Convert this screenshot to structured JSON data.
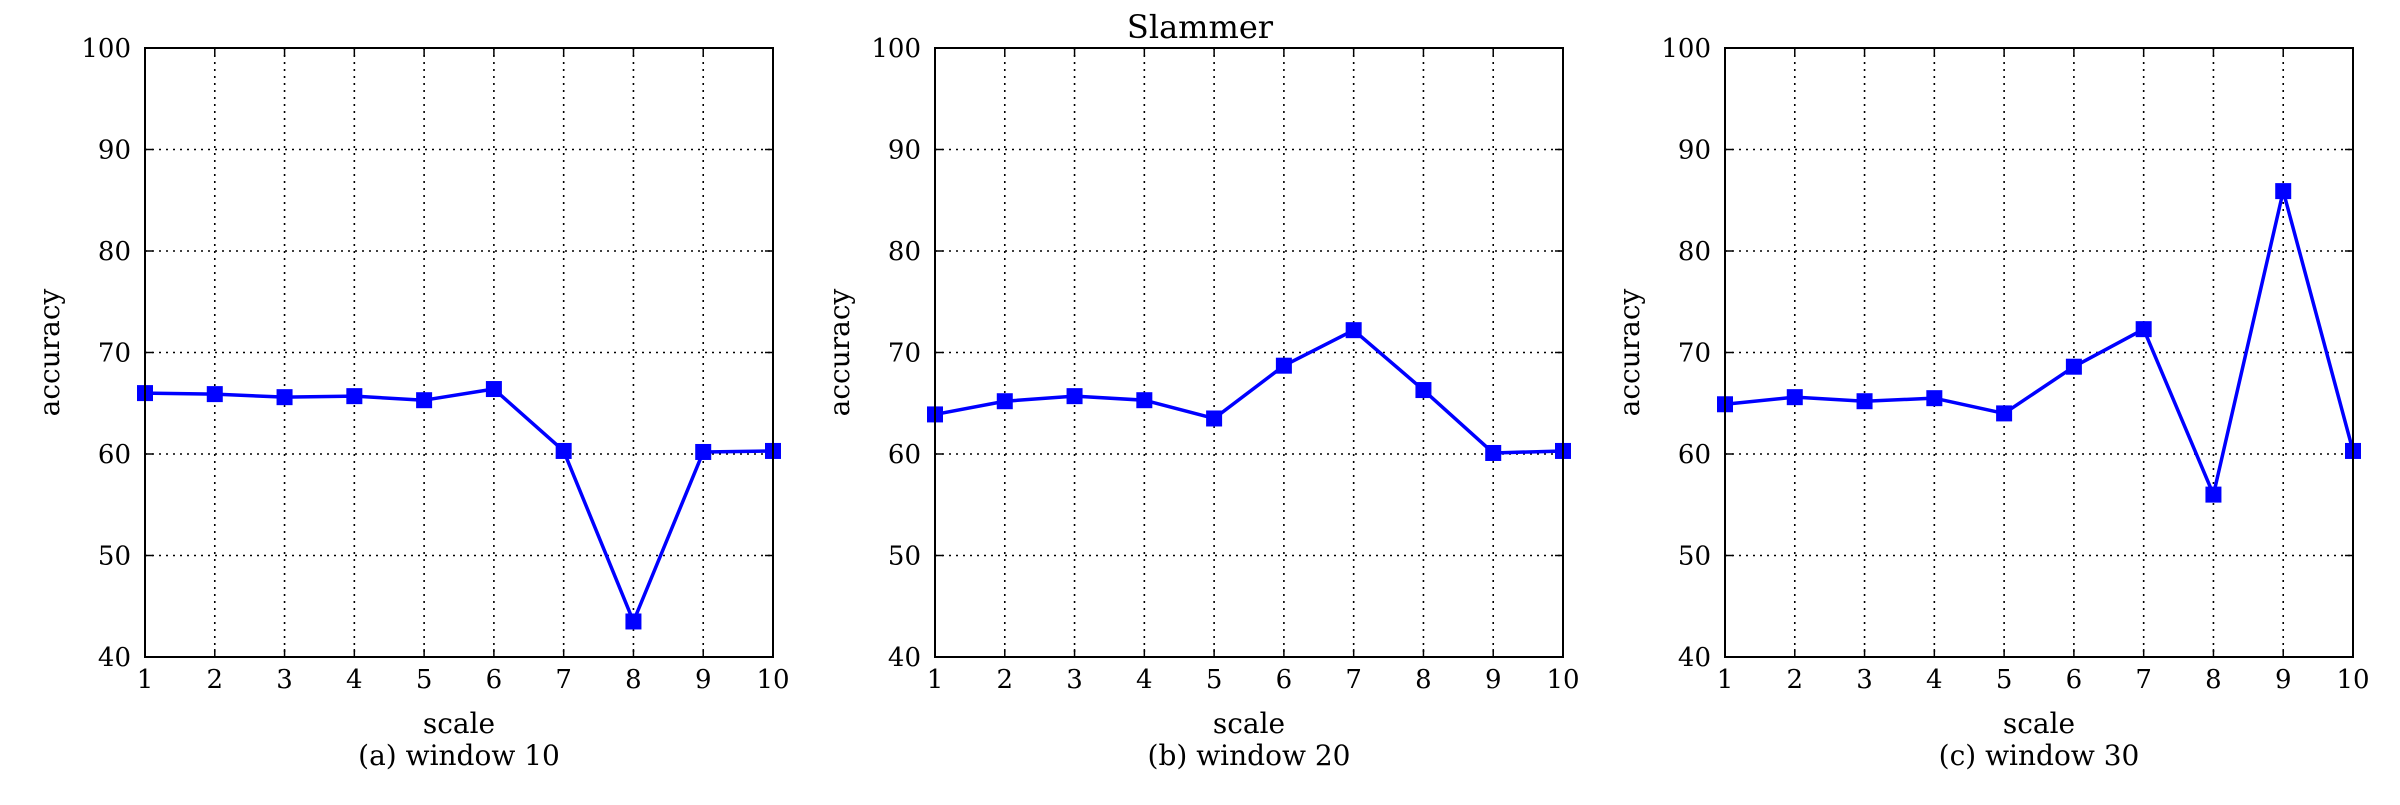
{
  "figure": {
    "title": "Slammer"
  },
  "style": {
    "line_color": "#0000ff",
    "axis_color": "#000000",
    "grid_color": "#000000",
    "grid_style": "dotted",
    "marker": "square"
  },
  "chart_data": [
    {
      "type": "line",
      "caption": "(a) window 10",
      "xlabel": "scale",
      "ylabel": "accuracy",
      "xlim": [
        1,
        10
      ],
      "ylim": [
        40,
        100
      ],
      "xticks": [
        1,
        2,
        3,
        4,
        5,
        6,
        7,
        8,
        9,
        10
      ],
      "yticks": [
        40,
        50,
        60,
        70,
        80,
        90,
        100
      ],
      "grid": true,
      "series": [
        {
          "x": [
            1,
            2,
            3,
            4,
            5,
            6,
            7,
            8,
            9,
            10
          ],
          "values": [
            66.0,
            65.9,
            65.6,
            65.7,
            65.3,
            66.4,
            60.3,
            43.5,
            60.2,
            60.3
          ]
        }
      ]
    },
    {
      "type": "line",
      "caption": "(b) window 20",
      "xlabel": "scale",
      "ylabel": "accuracy",
      "xlim": [
        1,
        10
      ],
      "ylim": [
        40,
        100
      ],
      "xticks": [
        1,
        2,
        3,
        4,
        5,
        6,
        7,
        8,
        9,
        10
      ],
      "yticks": [
        40,
        50,
        60,
        70,
        80,
        90,
        100
      ],
      "grid": true,
      "series": [
        {
          "x": [
            1,
            2,
            3,
            4,
            5,
            6,
            7,
            8,
            9,
            10
          ],
          "values": [
            63.9,
            65.2,
            65.7,
            65.3,
            63.5,
            68.7,
            72.2,
            66.3,
            60.1,
            60.3
          ]
        }
      ]
    },
    {
      "type": "line",
      "caption": "(c) window 30",
      "xlabel": "scale",
      "ylabel": "accuracy",
      "xlim": [
        1,
        10
      ],
      "ylim": [
        40,
        100
      ],
      "xticks": [
        1,
        2,
        3,
        4,
        5,
        6,
        7,
        8,
        9,
        10
      ],
      "yticks": [
        40,
        50,
        60,
        70,
        80,
        90,
        100
      ],
      "grid": true,
      "series": [
        {
          "x": [
            1,
            2,
            3,
            4,
            5,
            6,
            7,
            8,
            9,
            10
          ],
          "values": [
            64.9,
            65.6,
            65.2,
            65.5,
            64.0,
            68.6,
            72.3,
            56.0,
            85.9,
            60.3
          ]
        }
      ]
    }
  ]
}
